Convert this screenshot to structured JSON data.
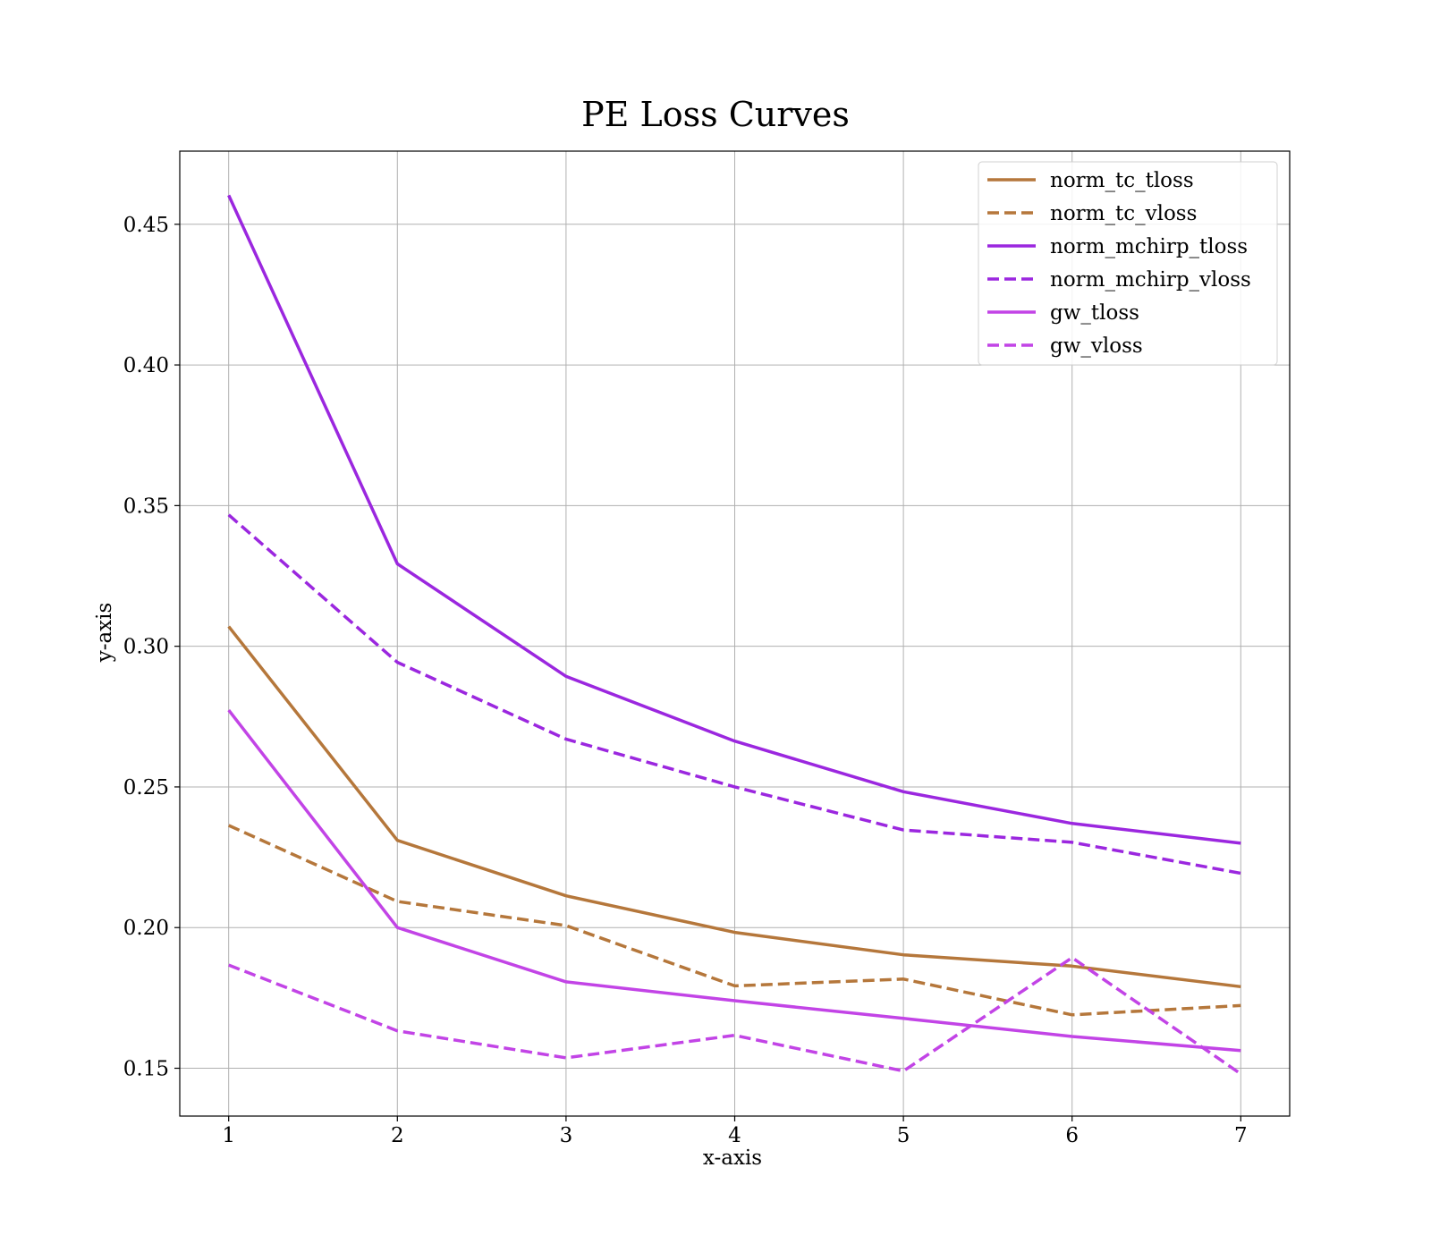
{
  "chart_data": {
    "type": "line",
    "title": "PE Loss Curves",
    "xlabel": "x-axis",
    "ylabel": "y-axis",
    "x": [
      1,
      2,
      3,
      4,
      5,
      6,
      7
    ],
    "xlim": [
      0.71,
      7.29
    ],
    "ylim": [
      0.133,
      0.476
    ],
    "xticks": [
      "1",
      "2",
      "3",
      "4",
      "5",
      "6",
      "7"
    ],
    "yticks": [
      "0.15",
      "0.20",
      "0.25",
      "0.30",
      "0.35",
      "0.40",
      "0.45"
    ],
    "grid": true,
    "legend_position": "upper right",
    "series": [
      {
        "name": "norm_tc_tloss",
        "color": "#b5773b",
        "dashed": false,
        "values": [
          0.307,
          0.231,
          0.2113,
          0.1983,
          0.1903,
          0.1863,
          0.179
        ]
      },
      {
        "name": "norm_tc_vloss",
        "color": "#b5773b",
        "dashed": true,
        "values": [
          0.2363,
          0.2093,
          0.2007,
          0.1793,
          0.1817,
          0.169,
          0.1723
        ]
      },
      {
        "name": "norm_mchirp_tloss",
        "color": "#9b27df",
        "dashed": false,
        "values": [
          0.4603,
          0.3293,
          0.2893,
          0.2663,
          0.2483,
          0.237,
          0.23
        ]
      },
      {
        "name": "norm_mchirp_vloss",
        "color": "#9b27df",
        "dashed": true,
        "values": [
          0.3467,
          0.2943,
          0.267,
          0.25,
          0.2347,
          0.2303,
          0.2193
        ]
      },
      {
        "name": "gw_tloss",
        "color": "#c244e6",
        "dashed": false,
        "values": [
          0.2773,
          0.2,
          0.1807,
          0.174,
          0.1677,
          0.1613,
          0.1563
        ]
      },
      {
        "name": "gw_vloss",
        "color": "#c244e6",
        "dashed": true,
        "values": [
          0.1867,
          0.1633,
          0.1537,
          0.1617,
          0.149,
          0.1893,
          0.148
        ]
      }
    ]
  }
}
